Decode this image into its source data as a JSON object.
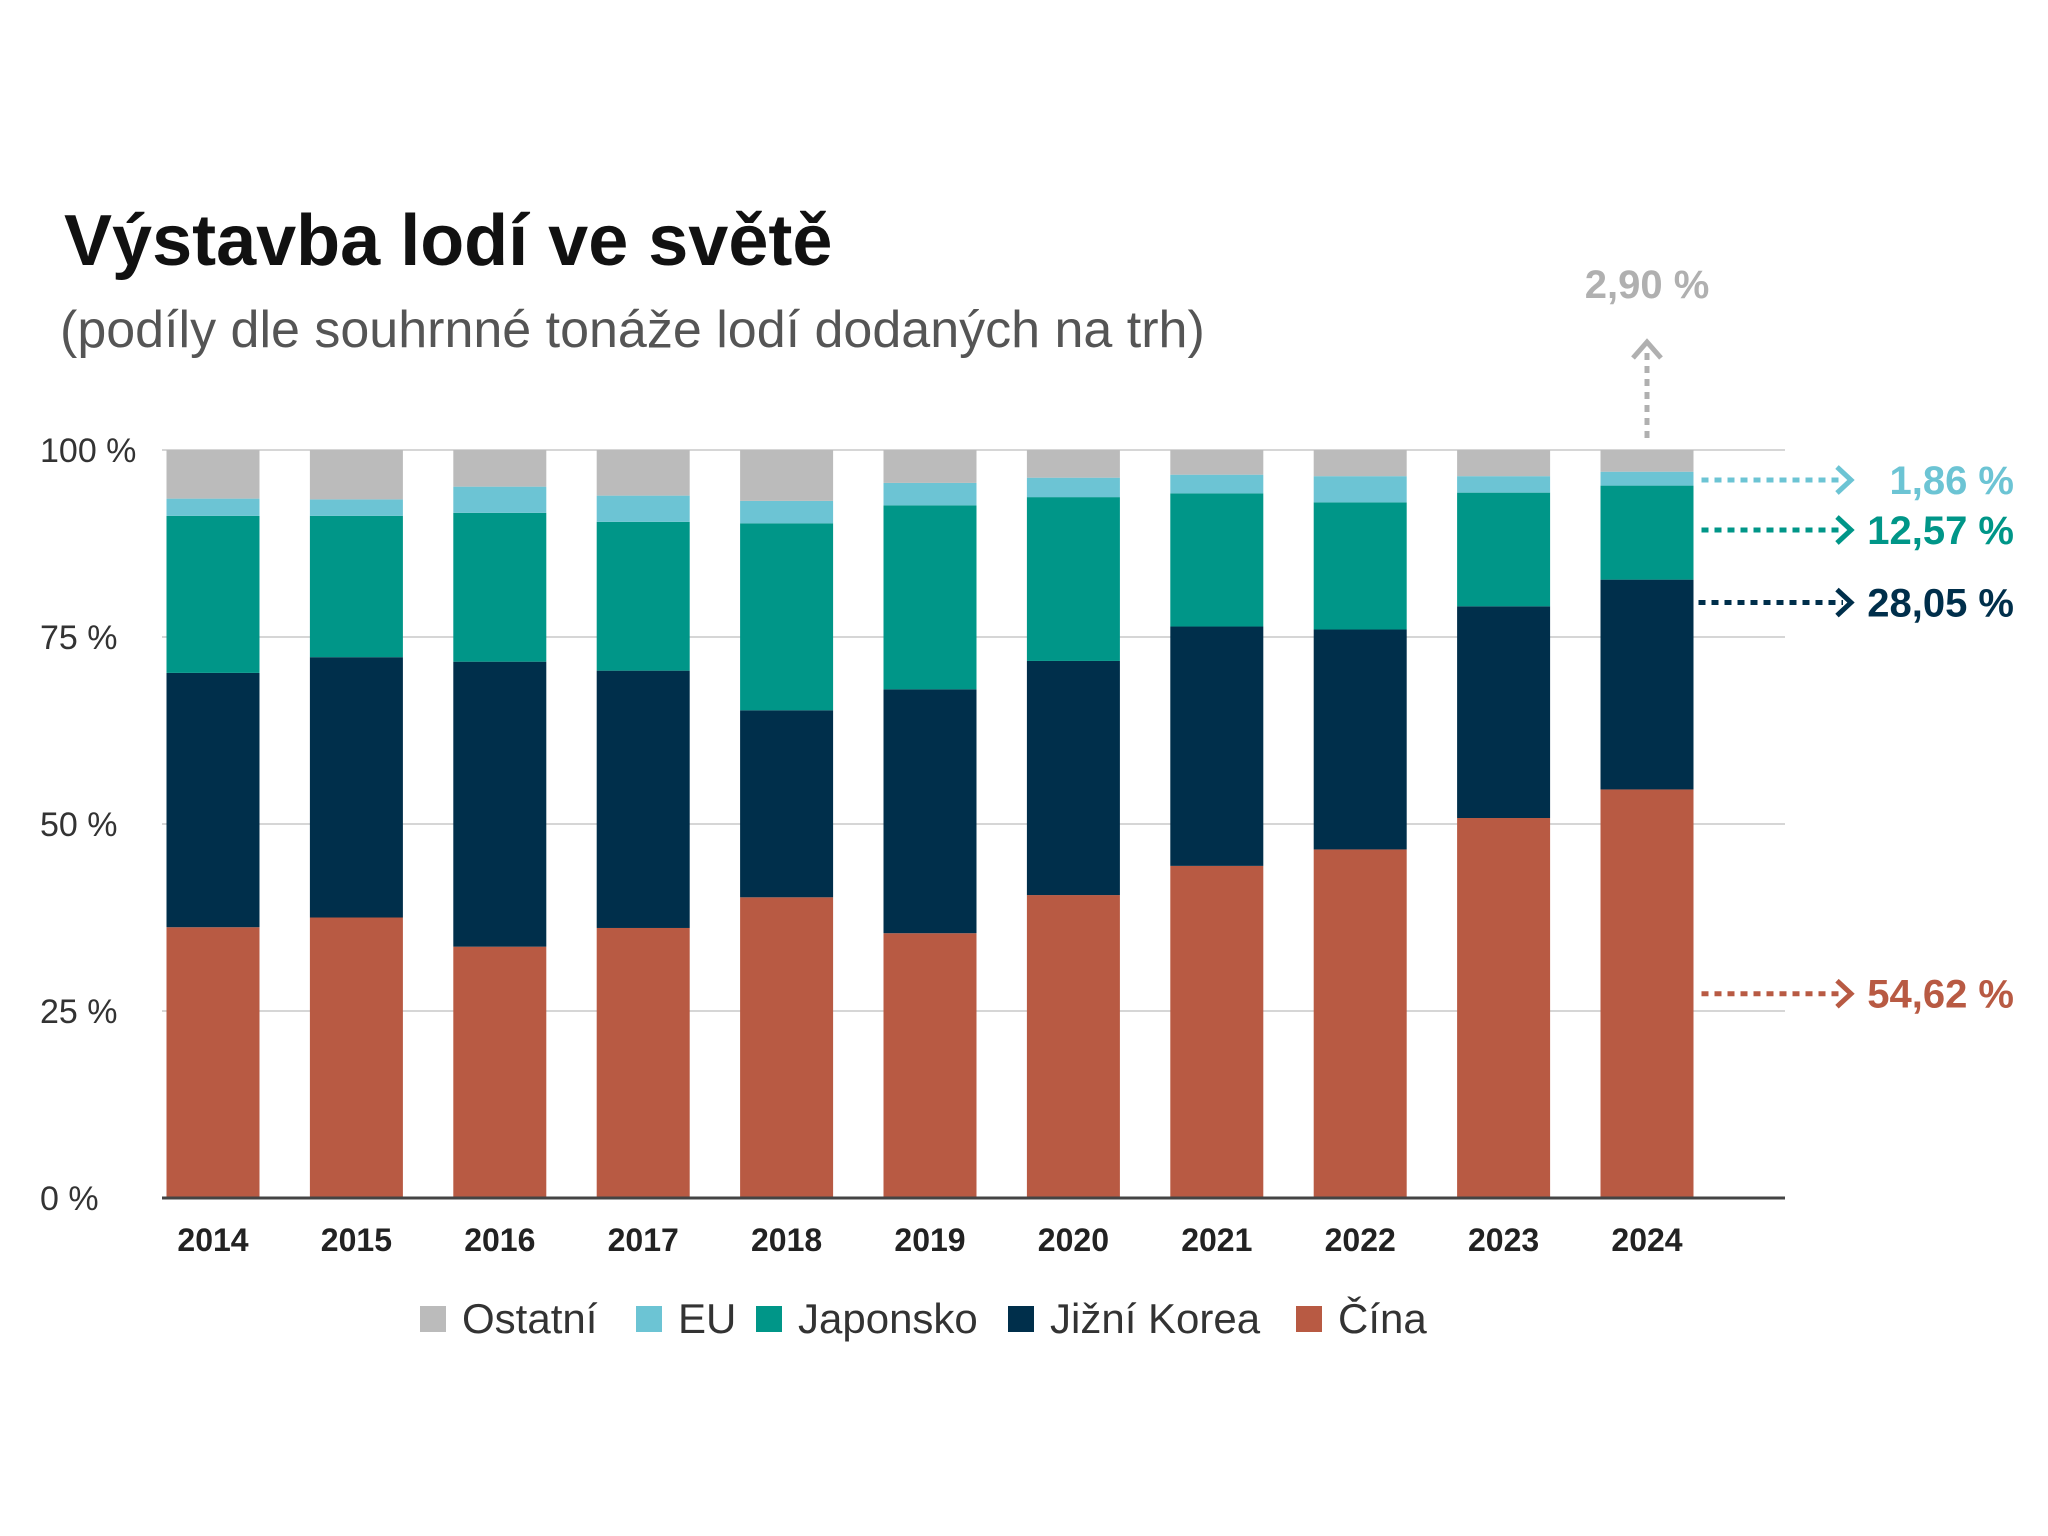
{
  "title": "Výstavba lodí ve světě",
  "subtitle": "(podíly dle souhrnné tonáže lodí dodaných na trh)",
  "chart_data": {
    "type": "bar",
    "stacked": true,
    "title": "Výstavba lodí ve světě",
    "subtitle": "(podíly dle souhrnné tonáže lodí dodaných na trh)",
    "xlabel": "",
    "ylabel": "",
    "ylim": [
      0,
      100
    ],
    "yticks": [
      {
        "value": 0,
        "label": "0 %"
      },
      {
        "value": 25,
        "label": "25 %"
      },
      {
        "value": 50,
        "label": "50 %"
      },
      {
        "value": 75,
        "label": "75 %"
      },
      {
        "value": 100,
        "label": "100 %"
      }
    ],
    "grid": true,
    "legend_position": "bottom",
    "categories": [
      "2014",
      "2015",
      "2016",
      "2017",
      "2018",
      "2019",
      "2020",
      "2021",
      "2022",
      "2023",
      "2024"
    ],
    "series": [
      {
        "name": "Čína",
        "color": "#b85a43",
        "values": [
          36.2,
          37.5,
          33.6,
          36.1,
          40.2,
          35.4,
          40.5,
          44.4,
          46.6,
          50.8,
          54.62
        ]
      },
      {
        "name": "Jižní Korea",
        "color": "#002f4b",
        "values": [
          34.0,
          34.8,
          38.1,
          34.4,
          25.0,
          32.6,
          31.3,
          32.0,
          29.4,
          28.3,
          28.05
        ]
      },
      {
        "name": "Japonsko",
        "color": "#009688",
        "values": [
          21.0,
          18.9,
          19.9,
          19.9,
          25.0,
          24.6,
          21.9,
          17.8,
          17.0,
          15.2,
          12.57
        ]
      },
      {
        "name": "EU",
        "color": "#6cc4d4",
        "values": [
          2.3,
          2.2,
          3.5,
          3.5,
          3.0,
          3.0,
          2.6,
          2.5,
          3.5,
          2.2,
          1.86
        ]
      },
      {
        "name": "Ostatní",
        "color": "#bbbbbb",
        "values": [
          6.5,
          6.6,
          4.9,
          6.1,
          6.8,
          4.4,
          3.7,
          3.3,
          3.5,
          3.5,
          2.9
        ]
      }
    ],
    "legend": [
      {
        "name": "Ostatní",
        "color": "#bbbbbb"
      },
      {
        "name": "EU",
        "color": "#6cc4d4"
      },
      {
        "name": "Japonsko",
        "color": "#009688"
      },
      {
        "name": "Jižní Korea",
        "color": "#002f4b"
      },
      {
        "name": "Čína",
        "color": "#b85a43"
      }
    ],
    "annotations": [
      {
        "series": "Ostatní",
        "label": "2,90 %",
        "color": "#b0b0b0",
        "direction": "up"
      },
      {
        "series": "EU",
        "label": "1,86 %",
        "color": "#6cc4d4",
        "direction": "right"
      },
      {
        "series": "Japonsko",
        "label": "12,57 %",
        "color": "#009688",
        "direction": "right"
      },
      {
        "series": "Jižní Korea",
        "label": "28,05 %",
        "color": "#002f4b",
        "direction": "right"
      },
      {
        "series": "Čína",
        "label": "54,62 %",
        "color": "#b85a43",
        "direction": "right"
      }
    ]
  }
}
